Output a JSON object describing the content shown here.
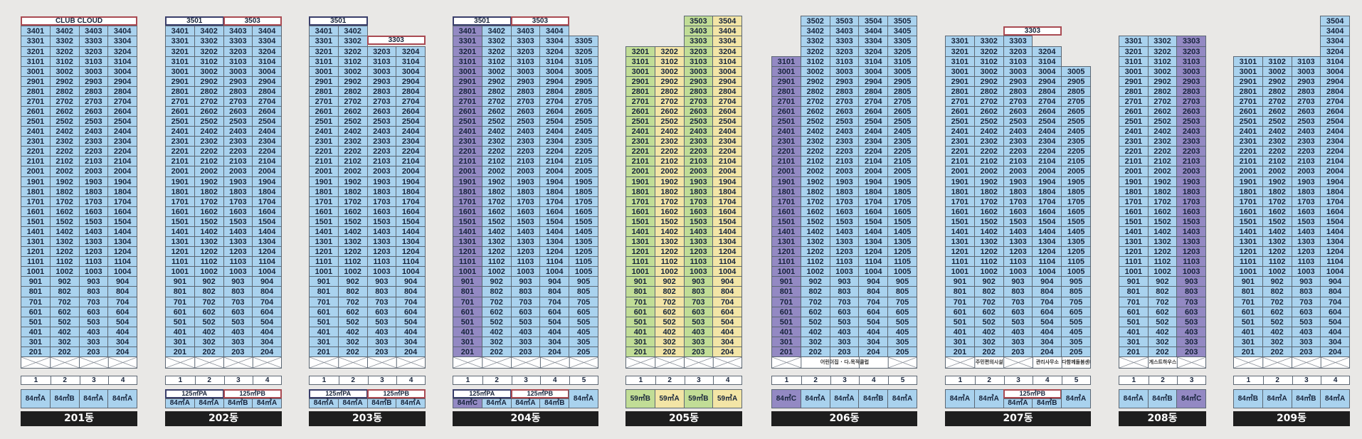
{
  "buildings": [
    {
      "name": "201동",
      "floor_top": 34,
      "lines": [
        "1",
        "2",
        "3",
        "4"
      ],
      "line_tops": [
        34,
        34,
        34,
        34
      ],
      "line_colors": [
        "b",
        "b",
        "b",
        "b"
      ],
      "top_labels": [
        {
          "text": "CLUB CLOUD",
          "color": "red",
          "span": [
            0,
            3
          ]
        }
      ],
      "types": [
        {
          "span": [
            0,
            0
          ],
          "text": "84㎡A",
          "color": "b"
        },
        {
          "span": [
            1,
            1
          ],
          "text": "84㎡B",
          "color": "b"
        },
        {
          "span": [
            2,
            2
          ],
          "text": "84㎡A",
          "color": "b"
        },
        {
          "span": [
            3,
            3
          ],
          "text": "84㎡A",
          "color": "b"
        }
      ],
      "ground_labels": []
    },
    {
      "name": "202동",
      "floor_top": 34,
      "lines": [
        "1",
        "2",
        "3",
        "4"
      ],
      "line_tops": [
        34,
        34,
        34,
        34
      ],
      "line_colors": [
        "b",
        "b",
        "b",
        "b"
      ],
      "top_labels": [
        {
          "text": "3501",
          "color": "blue",
          "span": [
            0,
            1
          ]
        },
        {
          "text": "3503",
          "color": "red",
          "span": [
            2,
            3
          ]
        }
      ],
      "types": [
        {
          "span": [
            0,
            1
          ],
          "text": "125㎡PA",
          "color": "b",
          "subs": [
            "84㎡A",
            "84㎡A"
          ],
          "frame": "blue"
        },
        {
          "span": [
            2,
            3
          ],
          "text": "125㎡PB",
          "color": "b",
          "subs": [
            "84㎡B",
            "84㎡A"
          ],
          "frame": "red"
        }
      ],
      "ground_labels": []
    },
    {
      "name": "203동",
      "floor_top": 34,
      "lines": [
        "1",
        "2",
        "3",
        "4"
      ],
      "line_tops": [
        34,
        34,
        32,
        32
      ],
      "line_colors": [
        "b",
        "b",
        "b",
        "b"
      ],
      "top_labels": [
        {
          "text": "3501",
          "color": "blue",
          "span": [
            0,
            1
          ]
        },
        {
          "text": "3303",
          "color": "red",
          "span": [
            2,
            3
          ],
          "row": 1
        }
      ],
      "types": [
        {
          "span": [
            0,
            1
          ],
          "text": "125㎡PA",
          "color": "b",
          "subs": [
            "84㎡A",
            "84㎡A"
          ],
          "frame": "blue"
        },
        {
          "span": [
            2,
            3
          ],
          "text": "125㎡PB",
          "color": "b",
          "subs": [
            "84㎡B",
            "84㎡A"
          ],
          "frame": "red"
        }
      ],
      "ground_labels": []
    },
    {
      "name": "204동",
      "floor_top": 34,
      "lines": [
        "1",
        "2",
        "3",
        "4",
        "5"
      ],
      "line_tops": [
        34,
        34,
        34,
        34,
        33
      ],
      "line_colors": [
        "v",
        "b",
        "b",
        "b",
        "b"
      ],
      "top_labels": [
        {
          "text": "3501",
          "color": "blue",
          "span": [
            0,
            1
          ]
        },
        {
          "text": "3503",
          "color": "red",
          "span": [
            2,
            3
          ]
        }
      ],
      "types": [
        {
          "span": [
            0,
            1
          ],
          "text": "125㎡PA",
          "color": "b",
          "subs": [
            "84㎡C",
            "84㎡A"
          ],
          "sub_colors": [
            "v",
            "b"
          ],
          "frame": "blue"
        },
        {
          "span": [
            2,
            3
          ],
          "text": "125㎡PB",
          "color": "b",
          "subs": [
            "84㎡A",
            "84㎡B"
          ],
          "frame": "red"
        },
        {
          "span": [
            4,
            4
          ],
          "text": "84㎡A",
          "color": "b"
        }
      ],
      "ground_labels": []
    },
    {
      "name": "205동",
      "floor_top": 35,
      "lines": [
        "1",
        "2",
        "3",
        "4"
      ],
      "line_tops": [
        32,
        32,
        35,
        35
      ],
      "line_colors": [
        "g",
        "y",
        "g",
        "y"
      ],
      "top_labels": [],
      "types": [
        {
          "span": [
            0,
            0
          ],
          "text": "59㎡B",
          "color": "g"
        },
        {
          "span": [
            1,
            1
          ],
          "text": "59㎡A",
          "color": "y"
        },
        {
          "span": [
            2,
            2
          ],
          "text": "59㎡B",
          "color": "g"
        },
        {
          "span": [
            3,
            3
          ],
          "text": "59㎡A",
          "color": "y"
        }
      ],
      "ground_labels": []
    },
    {
      "name": "206동",
      "floor_top": 35,
      "lines": [
        "1",
        "2",
        "3",
        "4",
        "5"
      ],
      "line_tops": [
        31,
        35,
        35,
        35,
        35
      ],
      "line_colors": [
        "v",
        "b",
        "b",
        "b",
        "b"
      ],
      "top_labels": [],
      "types": [
        {
          "span": [
            0,
            0
          ],
          "text": "84㎡C",
          "color": "v"
        },
        {
          "span": [
            1,
            1
          ],
          "text": "84㎡A",
          "color": "b"
        },
        {
          "span": [
            2,
            2
          ],
          "text": "84㎡A",
          "color": "b"
        },
        {
          "span": [
            3,
            3
          ],
          "text": "84㎡B",
          "color": "b"
        },
        {
          "span": [
            4,
            4
          ],
          "text": "84㎡A",
          "color": "b"
        }
      ],
      "ground_labels": [
        {
          "span": [
            1,
            3
          ],
          "text": "어린이집 · 다.목적클럽"
        }
      ]
    },
    {
      "name": "207동",
      "floor_top": 33,
      "lines": [
        "1",
        "2",
        "3",
        "4",
        "5"
      ],
      "line_tops": [
        33,
        33,
        33,
        32,
        30
      ],
      "line_colors": [
        "b",
        "b",
        "b",
        "b",
        "b"
      ],
      "top_labels": [
        {
          "text": "3303",
          "color": "red",
          "span": [
            2,
            3
          ]
        }
      ],
      "types": [
        {
          "span": [
            0,
            0
          ],
          "text": "84㎡A",
          "color": "b"
        },
        {
          "span": [
            1,
            1
          ],
          "text": "84㎡A",
          "color": "b"
        },
        {
          "span": [
            2,
            3
          ],
          "text": "125㎡PB",
          "color": "b",
          "subs": [
            "84㎡A",
            "84㎡B"
          ],
          "frame": "red"
        },
        {
          "span": [
            4,
            4
          ],
          "text": "84㎡A",
          "color": "b"
        }
      ],
      "ground_labels": [
        {
          "span": [
            1,
            1
          ],
          "text": "주민편의시설"
        },
        {
          "span": [
            3,
            3
          ],
          "text": "관리사무소"
        },
        {
          "span": [
            4,
            4
          ],
          "text": "다함께돌봄센터"
        }
      ]
    },
    {
      "name": "208동",
      "floor_top": 33,
      "lines": [
        "1",
        "2",
        "3"
      ],
      "line_tops": [
        33,
        33,
        33
      ],
      "line_colors": [
        "b",
        "b",
        "v"
      ],
      "top_labels": [],
      "types": [
        {
          "span": [
            0,
            0
          ],
          "text": "84㎡A",
          "color": "b"
        },
        {
          "span": [
            1,
            1
          ],
          "text": "84㎡B",
          "color": "b"
        },
        {
          "span": [
            2,
            2
          ],
          "text": "84㎡C",
          "color": "v"
        }
      ],
      "ground_labels": [
        {
          "span": [
            1,
            1
          ],
          "text": "게스트하우스"
        }
      ]
    },
    {
      "name": "209동",
      "floor_top": 35,
      "lines": [
        "1",
        "2",
        "3",
        "4"
      ],
      "line_tops": [
        31,
        31,
        31,
        35
      ],
      "line_colors": [
        "b",
        "b",
        "b",
        "b"
      ],
      "top_labels": [],
      "types": [
        {
          "span": [
            0,
            0
          ],
          "text": "84㎡B",
          "color": "b"
        },
        {
          "span": [
            1,
            1
          ],
          "text": "84㎡A",
          "color": "b"
        },
        {
          "span": [
            2,
            2
          ],
          "text": "84㎡B",
          "color": "b"
        },
        {
          "span": [
            3,
            3
          ],
          "text": "84㎡A",
          "color": "b"
        }
      ],
      "ground_labels": []
    }
  ],
  "colors": {
    "blue_unit": "#a9d2ee",
    "violet_unit": "#9389c3",
    "green_unit": "#c1dd96",
    "yellow_unit": "#f3e5a6",
    "background": "#e9e8e6",
    "label_bar": "#1e1e1e"
  }
}
